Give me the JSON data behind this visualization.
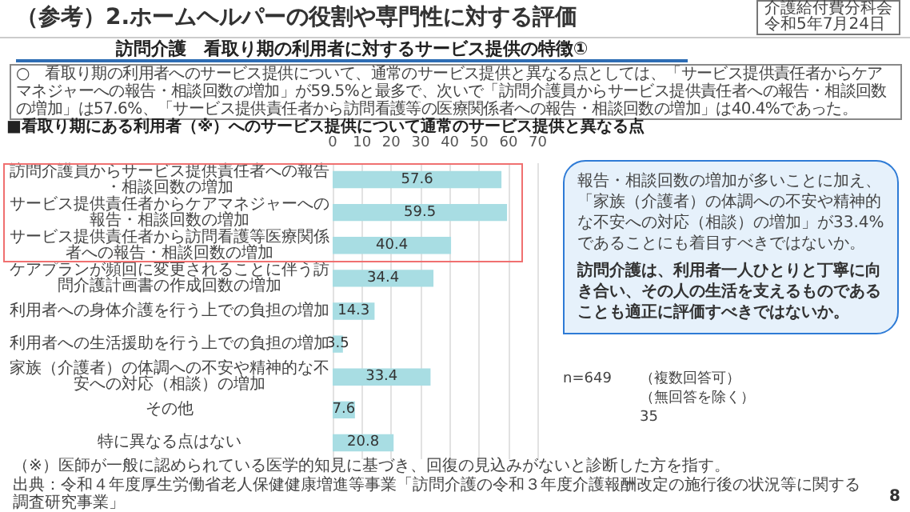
{
  "chart_data": {
    "type": "bar",
    "orientation": "horizontal",
    "title": "（参考）2.ホームヘルパーの役割や専門性に対する評価",
    "subtitle": "訪問介護　看取り期の利用者に対するサービス提供の特徴①",
    "categories": [
      "訪問介護員からサービス提供責任者への報告・相談回数の増加",
      "サービス提供責任者からケアマネジャーへの報告・相談回数の増加",
      "サービス提供責任者から訪問看護等医療関係者への報告・相談回数の増加",
      "ケアプランが頻回に変更されることに伴う訪問介護計画書の作成回数の増加",
      "利用者への身体介護を行う上での負担の増加",
      "利用者への生活援助を行う上での負担の増加",
      "家族（介護者）の体調への不安や精神的な不安への対応（相談）の増加",
      "その他",
      "特に異なる点はない"
    ],
    "values": [
      57.6,
      59.5,
      40.4,
      34.4,
      14.3,
      3.5,
      33.4,
      7.6,
      20.8
    ],
    "color": "#a8dde3",
    "data_labels": true,
    "xlim": [
      0,
      70
    ],
    "xticks": [
      0,
      10,
      20,
      30,
      40,
      50,
      60,
      70
    ],
    "grid": "x",
    "annotations": [
      "○　看取り期の利用者へのサービス提供について、通常のサービス提供と異なる点としては、「サービス提供責任者からケアマネジャーへの報告・相談回数の増加」が59.5%と最多で、次いで「訪問介護員からサービス提供責任者への報告・相談回数の増加」は57.6%、「サービス提供責任者から訪問看護等の医療関係者への報告・相談回数の増加」は40.4%であった。",
      "介護給付費分科会",
      "■看取り期にある利用者（※）へのサービス提供について通常のサービス提供と異なる点",
      "報告・相談回数の増加が多いことに加え、「家族（介護者）の体調への不安や精神的な不安への対応（相談）の増加」が33.4%であることにも着目すべきではないか。",
      "訪問介護は、利用者一人ひとりと丁寧に向き合い、その人の生活を支えるものであることも適正に評価すべきではないか。",
      "n=649",
      "（複数回答可）",
      "（無回答を除く）",
      "（※）医師が一般に認められている医学的知見に基づき、回復の見込みがないと診断した方を指す。",
      "出典：令和４年度厚生労働省老人保健健康増進等事業「訪問介護の令和３年度介護報酬改定の施行後の状況等に関する調査研究事業」",
      "35",
      "8",
      "令和5年7月24日"
    ]
  }
}
